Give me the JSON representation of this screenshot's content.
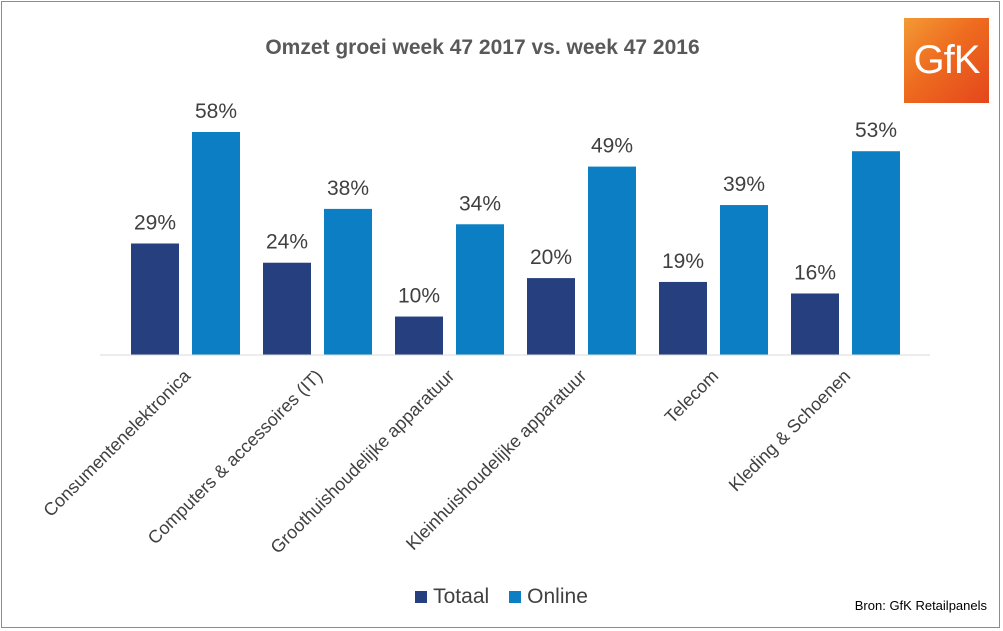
{
  "logo_text": "GfK",
  "source": "Bron: GfK Retailpanels",
  "colors": {
    "totaal": "#253F7F",
    "online": "#0C7FC4"
  },
  "chart_data": {
    "type": "bar",
    "title": "Omzet groei week 47 2017 vs. week 47 2016",
    "categories": [
      "Consumentenelektronica",
      "Computers & accessoires (IT)",
      "Groothuishoudelijke apparatuur",
      "Kleinhuishoudelijke apparatuur",
      "Telecom",
      "Kleding & Schoenen"
    ],
    "series": [
      {
        "name": "Totaal",
        "values": [
          29,
          24,
          10,
          20,
          19,
          16
        ],
        "labels": [
          "29%",
          "24%",
          "10%",
          "20%",
          "19%",
          "16%"
        ]
      },
      {
        "name": "Online",
        "values": [
          58,
          38,
          34,
          49,
          39,
          53
        ],
        "labels": [
          "58%",
          "38%",
          "34%",
          "49%",
          "39%",
          "53%"
        ]
      }
    ],
    "unit": "%",
    "legend_position": "bottom",
    "grid": false
  }
}
